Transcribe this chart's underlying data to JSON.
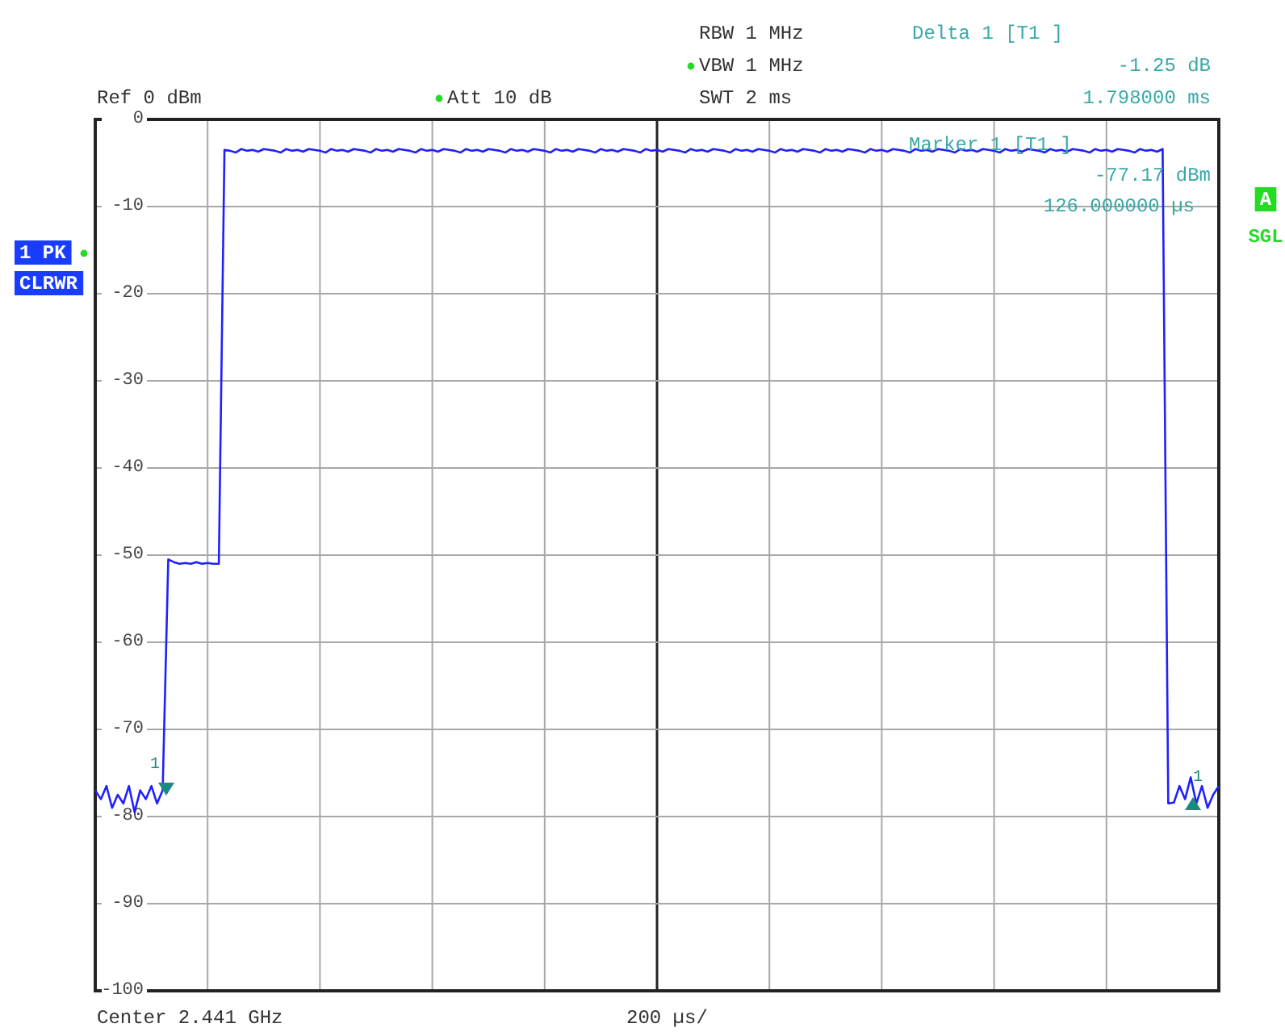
{
  "chart_data": {
    "type": "line",
    "grid": true,
    "tick_labels": "y",
    "categories": [
      null,
      null,
      null,
      null,
      null,
      null,
      null,
      null,
      null,
      null,
      null,
      null,
      null,
      null,
      null,
      null,
      null,
      null,
      null,
      null,
      null,
      null,
      null,
      null,
      null,
      null,
      null,
      null,
      null,
      null,
      null,
      null,
      null,
      null,
      null,
      null,
      null,
      null,
      null,
      null,
      null,
      null,
      null,
      null,
      null,
      null,
      null,
      null,
      null,
      null,
      null,
      null,
      null,
      null,
      null,
      null,
      null,
      null,
      null,
      null,
      null,
      null,
      null,
      null,
      null,
      null,
      null,
      null,
      null,
      null,
      null,
      null,
      null,
      null,
      null,
      null,
      null,
      null,
      null,
      null,
      null,
      null,
      null,
      null,
      null,
      null,
      null,
      null,
      null,
      null,
      null,
      null,
      null,
      null,
      null,
      null,
      null,
      null,
      null,
      null,
      null,
      null,
      null,
      null,
      null,
      null,
      null,
      null,
      null,
      null,
      null,
      null,
      null,
      null,
      null,
      null,
      null,
      null,
      null,
      null,
      null,
      null,
      null,
      null,
      null,
      null,
      null,
      null,
      null,
      null,
      null,
      null,
      null,
      null,
      null,
      null,
      null,
      null,
      null,
      null,
      null,
      null,
      null,
      null,
      null,
      null,
      null,
      null,
      null,
      null,
      null,
      null,
      null,
      null,
      null,
      null,
      null,
      null,
      null,
      null,
      null,
      null,
      null,
      null,
      null,
      null,
      null,
      null,
      null,
      null,
      null,
      null,
      null,
      null,
      null,
      null,
      null,
      null,
      null,
      null,
      null,
      null,
      null,
      null,
      null,
      null,
      null,
      null,
      null,
      null,
      null,
      null,
      null,
      null,
      null,
      null,
      null,
      null,
      null,
      null,
      null
    ],
    "ylim": [
      -100,
      0
    ],
    "yticks": [
      0,
      -10,
      -20,
      -30,
      -40,
      -50,
      -60,
      -70,
      -80,
      -90,
      -100
    ],
    "series": [
      {
        "type": "line",
        "color": "#2020ff",
        "values": [
          -77,
          -78,
          -76.5,
          -79,
          -77.5,
          -78.5,
          -76.5,
          -79.5,
          -77,
          -78,
          -76.5,
          -78.5,
          -77,
          -50.5,
          -50.8,
          -51,
          -50.9,
          -51,
          -50.8,
          -51,
          -50.9,
          -51,
          -51,
          -3.5,
          -3.6,
          -3.8,
          -3.4,
          -3.6,
          -3.5,
          -3.7,
          -3.4,
          -3.5,
          -3.6,
          -3.8,
          -3.4,
          -3.6,
          -3.5,
          -3.7,
          -3.4,
          -3.5,
          -3.6,
          -3.8,
          -3.4,
          -3.6,
          -3.5,
          -3.7,
          -3.4,
          -3.5,
          -3.6,
          -3.8,
          -3.4,
          -3.6,
          -3.5,
          -3.7,
          -3.4,
          -3.5,
          -3.6,
          -3.8,
          -3.4,
          -3.6,
          -3.5,
          -3.7,
          -3.4,
          -3.5,
          -3.6,
          -3.8,
          -3.4,
          -3.6,
          -3.5,
          -3.7,
          -3.4,
          -3.5,
          -3.6,
          -3.8,
          -3.4,
          -3.6,
          -3.5,
          -3.7,
          -3.4,
          -3.5,
          -3.6,
          -3.8,
          -3.4,
          -3.6,
          -3.5,
          -3.7,
          -3.4,
          -3.5,
          -3.6,
          -3.8,
          -3.4,
          -3.6,
          -3.5,
          -3.7,
          -3.4,
          -3.5,
          -3.6,
          -3.8,
          -3.4,
          -3.6,
          -3.5,
          -3.7,
          -3.4,
          -3.5,
          -3.6,
          -3.8,
          -3.4,
          -3.6,
          -3.5,
          -3.7,
          -3.4,
          -3.5,
          -3.6,
          -3.8,
          -3.4,
          -3.6,
          -3.5,
          -3.7,
          -3.4,
          -3.5,
          -3.6,
          -3.8,
          -3.4,
          -3.6,
          -3.5,
          -3.7,
          -3.4,
          -3.5,
          -3.6,
          -3.8,
          -3.4,
          -3.6,
          -3.5,
          -3.7,
          -3.4,
          -3.5,
          -3.6,
          -3.8,
          -3.4,
          -3.6,
          -3.5,
          -3.7,
          -3.4,
          -3.5,
          -3.6,
          -3.8,
          -3.4,
          -3.6,
          -3.5,
          -3.7,
          -3.4,
          -3.5,
          -3.6,
          -3.8,
          -3.4,
          -3.6,
          -3.5,
          -3.7,
          -3.4,
          -3.5,
          -3.6,
          -3.8,
          -3.4,
          -3.6,
          -3.5,
          -3.7,
          -3.4,
          -3.5,
          -3.6,
          -3.8,
          -3.4,
          -3.6,
          -3.5,
          -3.7,
          -3.4,
          -3.5,
          -3.6,
          -3.8,
          -3.4,
          -3.6,
          -3.5,
          -3.7,
          -3.4,
          -3.5,
          -3.6,
          -3.8,
          -3.4,
          -3.6,
          -3.5,
          -3.7,
          -3.4,
          -78.5,
          -78.4,
          -76.5,
          -78,
          -75.5,
          -78.5,
          -76.5,
          -79,
          -77.5,
          -76.5
        ]
      }
    ],
    "annotations": [
      "RBW 1 MHz",
      "VBW 1 MHz",
      "SWT 2 ms",
      "Ref 0 dBm",
      "Att 10 dB",
      "Delta 1 [T1 ]",
      "-1.25 dB",
      "1.798000 ms",
      "Marker 1 [T1 ]",
      "-77.17 dBm",
      "126.000000 µs",
      "1 PK",
      "CLRWR",
      "A",
      "SGL",
      "Center 2.441 GHz",
      "200 µs/",
      "1",
      "1"
    ]
  }
}
